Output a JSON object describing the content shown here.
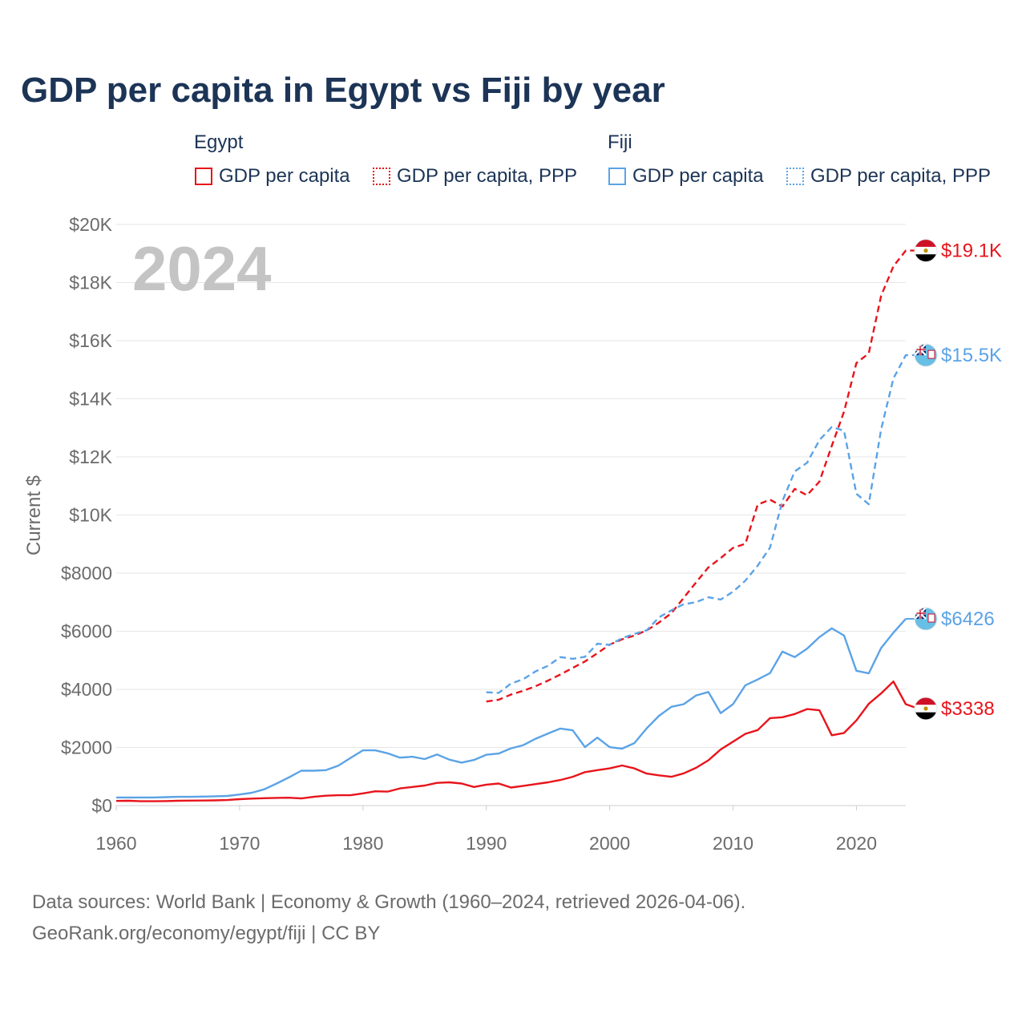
{
  "title": "GDP per capita in Egypt vs Fiji by year",
  "legend": {
    "groups": [
      {
        "name": "Egypt",
        "color": "#e8141b",
        "items": [
          "GDP per capita",
          "GDP per capita, PPP"
        ]
      },
      {
        "name": "Fiji",
        "color": "#5ba3e6",
        "items": [
          "GDP per capita",
          "GDP per capita, PPP"
        ]
      }
    ]
  },
  "year_watermark": "2024",
  "footer": {
    "line1": "Data sources: World Bank | Economy & Growth (1960–2024, retrieved 2026-04-06).",
    "line2": "GeoRank.org/economy/egypt/fiji | CC BY"
  },
  "flags": {
    "egypt": "egypt-flag-icon",
    "fiji": "fiji-flag-icon"
  },
  "chart_data": {
    "type": "line",
    "ylabel": "Current $",
    "xlabel": "",
    "xlim": [
      1960,
      2024
    ],
    "ylim": [
      0,
      20000
    ],
    "x_ticks": [
      1960,
      1970,
      1980,
      1990,
      2000,
      2010,
      2020
    ],
    "y_ticks": [
      {
        "value": 0,
        "label": "$0"
      },
      {
        "value": 2000,
        "label": "$2000"
      },
      {
        "value": 4000,
        "label": "$4000"
      },
      {
        "value": 6000,
        "label": "$6000"
      },
      {
        "value": 8000,
        "label": "$8000"
      },
      {
        "value": 10000,
        "label": "$10K"
      },
      {
        "value": 12000,
        "label": "$12K"
      },
      {
        "value": 14000,
        "label": "$14K"
      },
      {
        "value": 16000,
        "label": "$16K"
      },
      {
        "value": 18000,
        "label": "$18K"
      },
      {
        "value": 20000,
        "label": "$20K"
      }
    ],
    "grid": true,
    "series": [
      {
        "name": "Egypt GDP per capita",
        "country": "egypt",
        "color": "#e8141b",
        "dashed": false,
        "end_label": "$3338",
        "start_year": 1960,
        "values": [
          160,
          165,
          150,
          150,
          155,
          165,
          170,
          175,
          180,
          190,
          220,
          240,
          255,
          265,
          270,
          245,
          300,
          340,
          355,
          355,
          420,
          490,
          480,
          590,
          640,
          690,
          780,
          800,
          760,
          640,
          720,
          760,
          620,
          680,
          740,
          800,
          880,
          990,
          1150,
          1220,
          1280,
          1380,
          1280,
          1100,
          1040,
          990,
          1110,
          1300,
          1560,
          1930,
          2200,
          2470,
          2600,
          3010,
          3040,
          3150,
          3320,
          3280,
          2420,
          2500,
          2930,
          3500,
          3860,
          4270,
          3490,
          3338
        ]
      },
      {
        "name": "Fiji GDP per capita",
        "country": "fiji",
        "color": "#5ba3e6",
        "dashed": false,
        "end_label": "$6426",
        "start_year": 1960,
        "values": [
          280,
          280,
          280,
          280,
          290,
          300,
          300,
          310,
          320,
          330,
          380,
          440,
          560,
          760,
          970,
          1200,
          1200,
          1220,
          1370,
          1640,
          1900,
          1900,
          1800,
          1650,
          1680,
          1600,
          1760,
          1580,
          1480,
          1570,
          1750,
          1790,
          1970,
          2080,
          2300,
          2480,
          2650,
          2590,
          2010,
          2340,
          2010,
          1960,
          2150,
          2660,
          3090,
          3400,
          3490,
          3790,
          3910,
          3180,
          3490,
          4140,
          4340,
          4560,
          5300,
          5110,
          5400,
          5800,
          6100,
          5850,
          4640,
          4550,
          5420,
          5950,
          6426
        ]
      },
      {
        "name": "Egypt GDP per capita, PPP",
        "country": "egypt",
        "color": "#e8141b",
        "dashed": true,
        "end_label": "$19.1K",
        "start_year": 1990,
        "values": [
          3580,
          3640,
          3820,
          3950,
          4110,
          4300,
          4510,
          4740,
          4960,
          5240,
          5540,
          5720,
          5850,
          6030,
          6300,
          6620,
          7150,
          7680,
          8200,
          8520,
          8870,
          9010,
          10360,
          10530,
          10290,
          10900,
          10680,
          11150,
          12380,
          13560,
          15230,
          15560,
          17540,
          18560,
          19100,
          19100
        ]
      },
      {
        "name": "Fiji GDP per capita, PPP",
        "country": "fiji",
        "color": "#5ba3e6",
        "dashed": true,
        "end_label": "$15.5K",
        "start_year": 1990,
        "values": [
          3900,
          3880,
          4200,
          4350,
          4620,
          4810,
          5110,
          5050,
          5120,
          5570,
          5530,
          5760,
          5910,
          6030,
          6480,
          6720,
          6930,
          7000,
          7170,
          7090,
          7360,
          7740,
          8260,
          8880,
          10480,
          11500,
          11800,
          12580,
          13030,
          12900,
          10730,
          10370,
          12940,
          14700,
          15500,
          15500
        ]
      }
    ]
  }
}
